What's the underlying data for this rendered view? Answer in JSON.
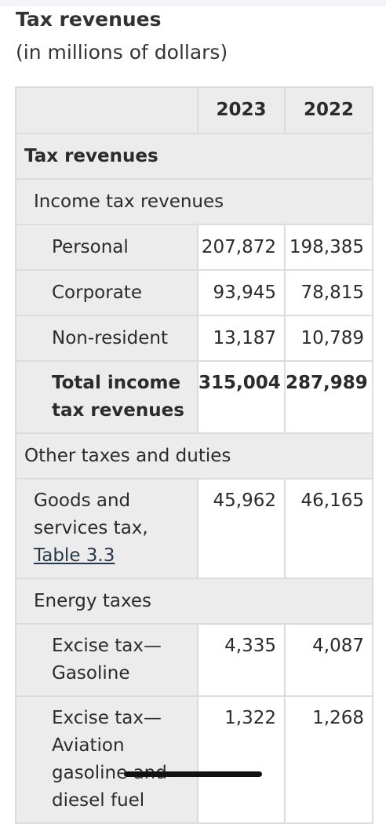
{
  "caption": {
    "title": "Tax revenues",
    "subtitle": "(in millions of dollars)"
  },
  "columns": [
    "2023",
    "2022"
  ],
  "sections": {
    "tax_revenues": "Tax revenues",
    "income_tax": "Income tax revenues",
    "other_taxes": "Other taxes and duties",
    "energy_taxes": "Energy taxes"
  },
  "rows": {
    "personal": {
      "label": "Personal",
      "v2023": "207,872",
      "v2022": "198,385"
    },
    "corporate": {
      "label": "Corporate",
      "v2023": "93,945",
      "v2022": "78,815"
    },
    "non_resident": {
      "label": "Non-resident",
      "v2023": "13,187",
      "v2022": "10,789"
    },
    "total_income": {
      "label": "Total income tax revenues",
      "v2023": "315,004",
      "v2022": "287,989"
    },
    "gst": {
      "label": "Goods and services tax,",
      "link": "Table 3.3",
      "v2023": "45,962",
      "v2022": "46,165"
    },
    "gasoline": {
      "label": "Excise tax—Gasoline",
      "v2023": "4,335",
      "v2022": "4,087"
    },
    "aviation": {
      "label": "Excise tax—Aviation gasoline and diesel fuel",
      "v2023": "1,322",
      "v2022": "1,268"
    }
  }
}
